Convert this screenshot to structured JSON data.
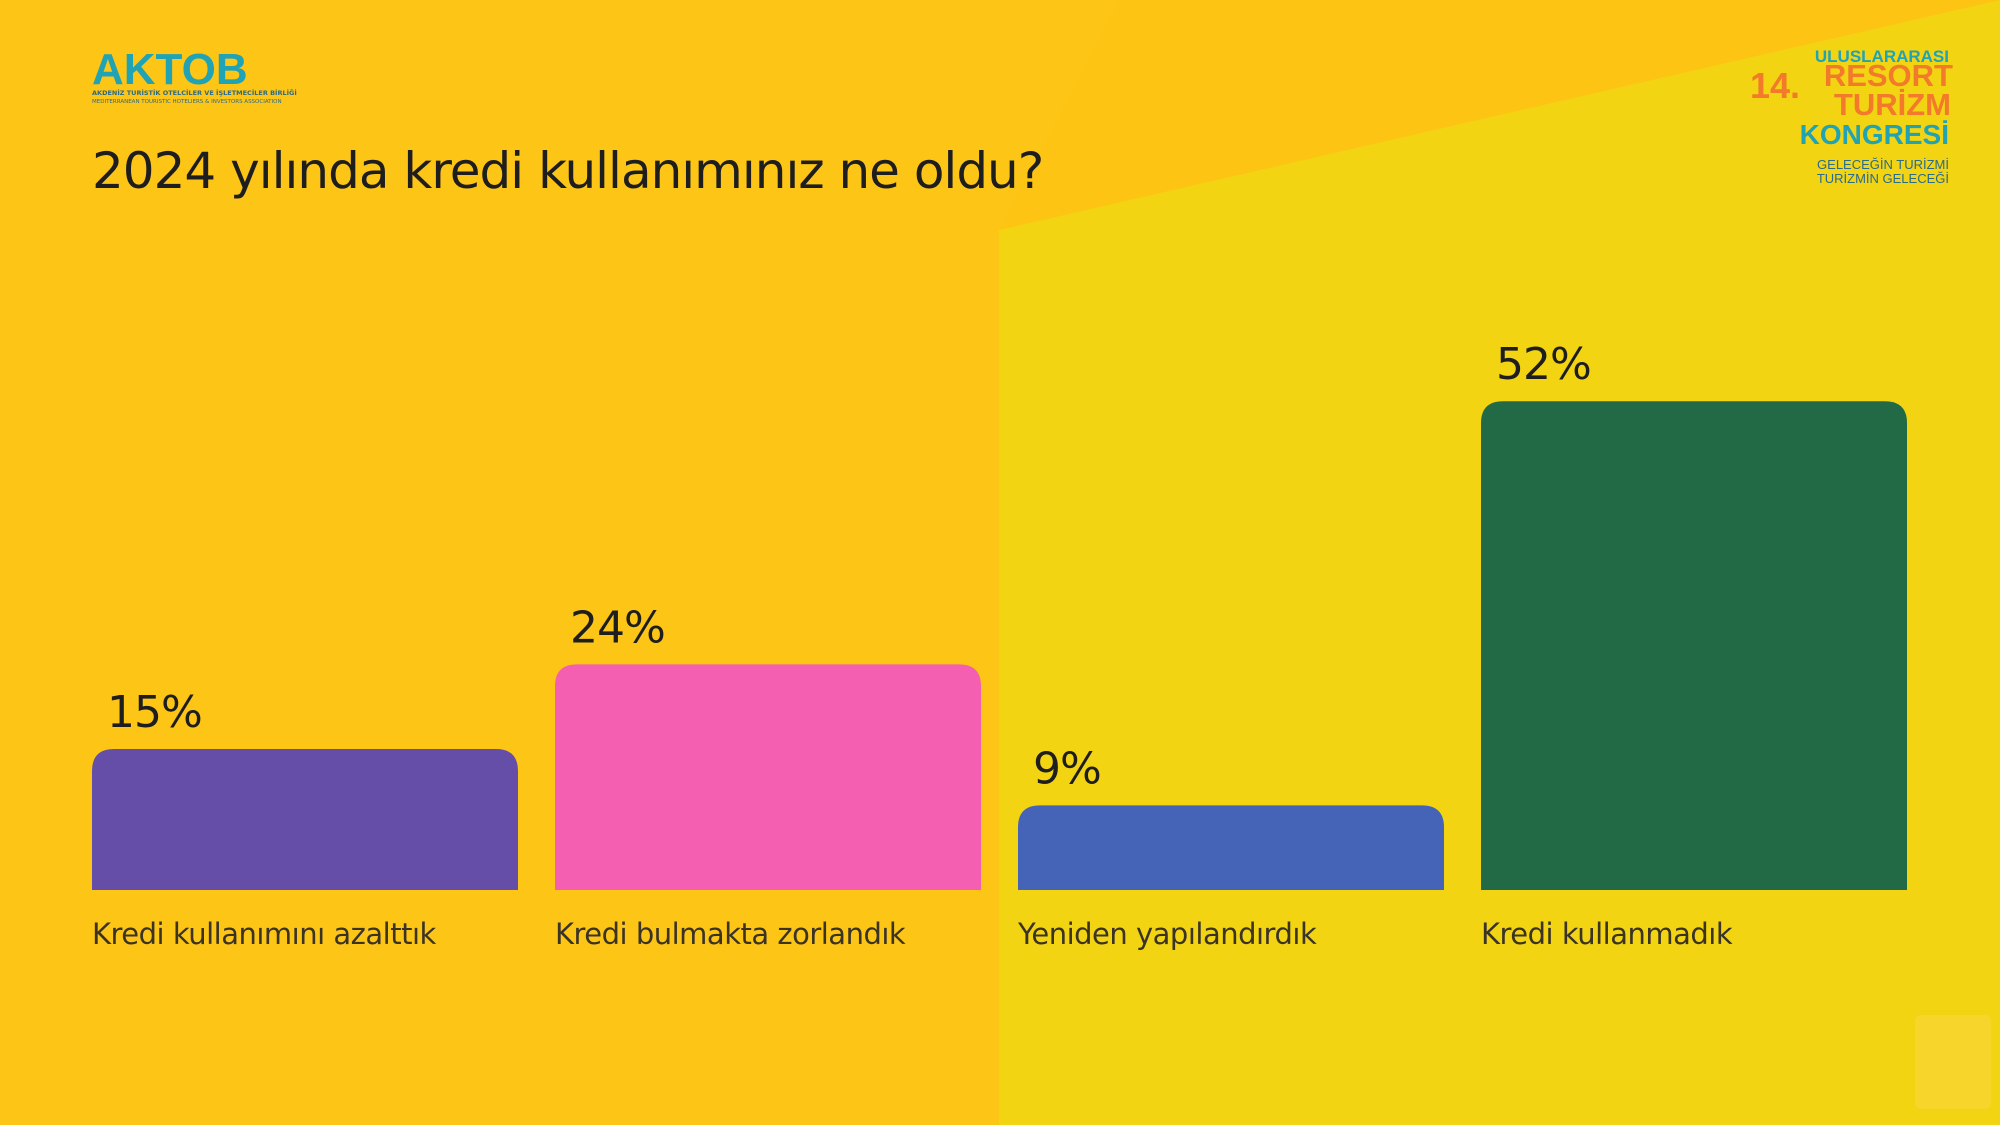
{
  "header": {
    "brand": "AKTOB",
    "brand_line1": "AKDENİZ TURİSTİK OTELCİLER VE İŞLETMECİLER BİRLİĞİ",
    "brand_line2": "MEDITERRANEAN TOURISTIC HOTELIERS & INVESTORS ASSOCIATION",
    "event_top": "ULUSLARARASI",
    "event_number": "14.",
    "event_line1": "RESORT",
    "event_line2": "TURİZM",
    "event_line3": "KONGRESİ",
    "event_tag1": "GELECEĞİN TURİZMİ",
    "event_tag2": "TURİZMİN GELECEĞİ"
  },
  "chart_data": {
    "type": "bar",
    "title": "2024 yılında kredi kullanımınız ne oldu?",
    "categories": [
      "Kredi kullanımını azalttık",
      "Kredi bulmakta zorlandık",
      "Yeniden yapılandırdık",
      "Kredi kullanmadık"
    ],
    "values": [
      15,
      24,
      9,
      52
    ],
    "value_labels": [
      "15%",
      "24%",
      "9%",
      "52%"
    ],
    "colors": [
      "#654ea8",
      "#f45fb1",
      "#4564b8",
      "#216a45"
    ]
  }
}
